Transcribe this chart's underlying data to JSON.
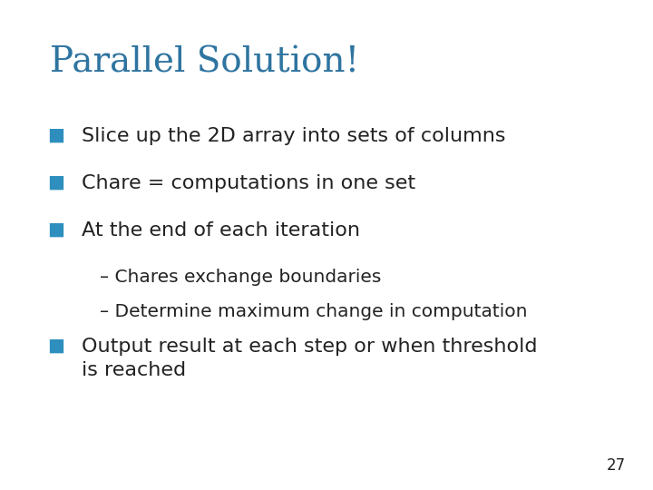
{
  "title": "Parallel Solution!",
  "title_color": "#2E74A0",
  "title_fontsize": 28,
  "title_font": "serif",
  "background_color": "#ffffff",
  "bullet_color": "#2E8FBF",
  "text_color": "#222222",
  "bullet_items": [
    {
      "level": 0,
      "text": "Slice up the 2D array into sets of columns"
    },
    {
      "level": 0,
      "text": "Chare = computations in one set"
    },
    {
      "level": 0,
      "text": "At the end of each iteration"
    },
    {
      "level": 1,
      "text": "– Chares exchange boundaries"
    },
    {
      "level": 1,
      "text": "– Determine maximum change in computation"
    },
    {
      "level": 0,
      "text": "Output result at each step or when threshold\nis reached"
    }
  ],
  "bullet_fontsize": 16,
  "sub_fontsize": 14.5,
  "page_number": "27",
  "page_number_fontsize": 12
}
